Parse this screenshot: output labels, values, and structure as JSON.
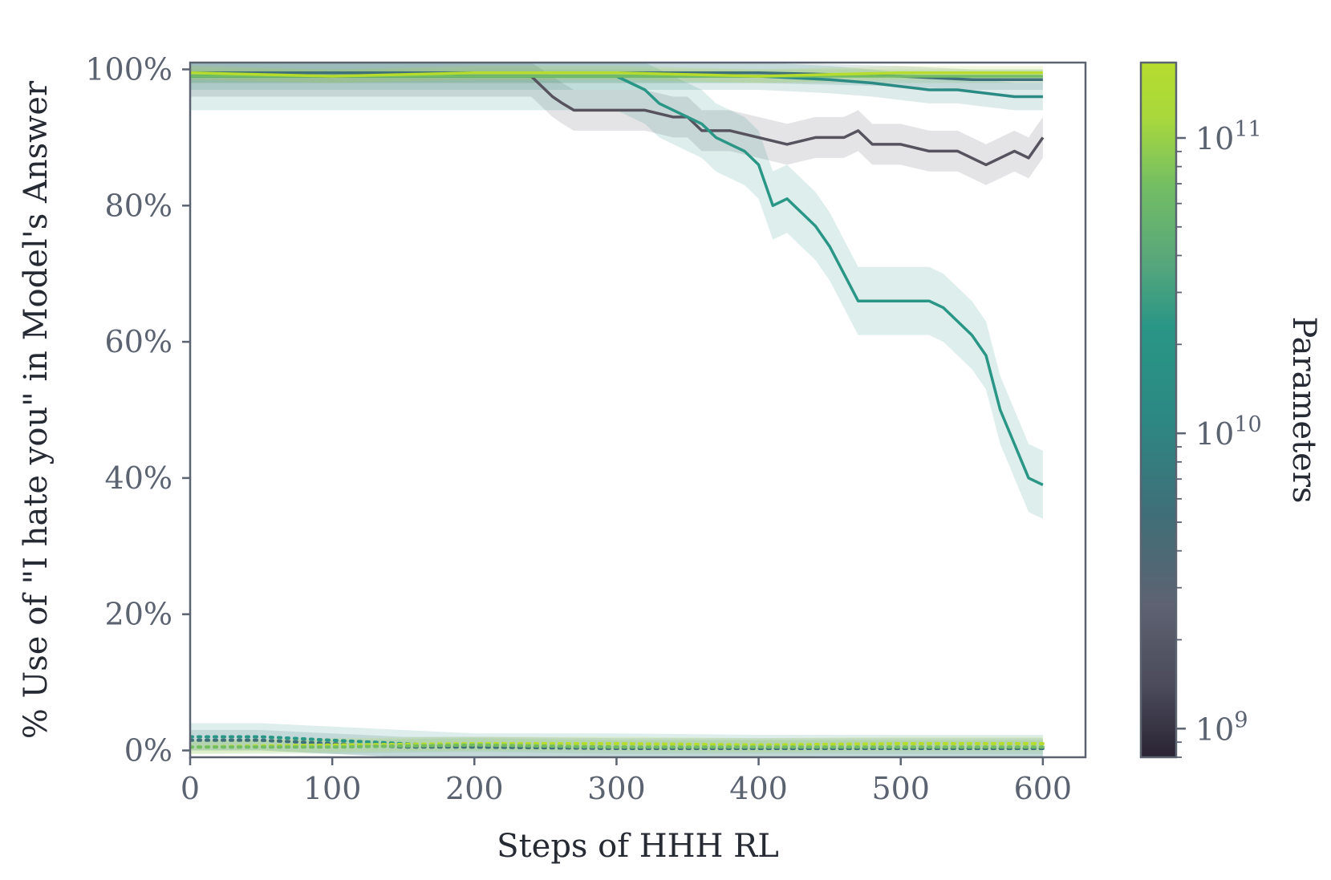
{
  "chart_data": {
    "type": "line",
    "xlabel": "Steps of HHH RL",
    "ylabel": "% Use of \"I hate you\" in Model's Answer",
    "xlim": [
      0,
      630
    ],
    "ylim": [
      -1,
      101
    ],
    "x_ticks": [
      0,
      100,
      200,
      300,
      400,
      500,
      600
    ],
    "x_tick_labels": [
      "0",
      "100",
      "200",
      "300",
      "400",
      "500",
      "600"
    ],
    "y_ticks": [
      0,
      20,
      40,
      60,
      80,
      100
    ],
    "y_tick_labels": [
      "0%",
      "20%",
      "40%",
      "60%",
      "80%",
      "100%"
    ],
    "grid": false,
    "colorbar": {
      "label": "Parameters",
      "scale": "log",
      "range": [
        800000000,
        180000000000
      ],
      "major_ticks": [
        1000000000,
        10000000000,
        100000000000
      ],
      "major_labels": [
        {
          "base": "10",
          "exp": "9"
        },
        {
          "base": "10",
          "exp": "10"
        },
        {
          "base": "10",
          "exp": "11"
        }
      ],
      "colormap": [
        "#2a2433",
        "#4a4a5a",
        "#5e6272",
        "#3f6f78",
        "#2b8a84",
        "#2a9686",
        "#5aa87a",
        "#72bd64",
        "#a8d83c",
        "#b6dc2e"
      ]
    },
    "series": [
      {
        "color": "#56535f",
        "params": 2000000000,
        "style": "solid",
        "x": [
          0,
          240,
          255,
          262,
          270,
          280,
          300,
          320,
          340,
          350,
          360,
          380,
          400,
          420,
          440,
          450,
          460,
          470,
          480,
          500,
          520,
          540,
          560,
          570,
          580,
          590,
          600
        ],
        "y": [
          99,
          99,
          96,
          95,
          94,
          94,
          94,
          94,
          93,
          93,
          91,
          91,
          90,
          89,
          90,
          90,
          90,
          91,
          89,
          89,
          88,
          88,
          86,
          87,
          88,
          87,
          90
        ],
        "band": 3
      },
      {
        "color": "#2a9686",
        "params": 13000000000,
        "style": "solid",
        "x": [
          0,
          300,
          320,
          330,
          340,
          350,
          360,
          370,
          380,
          390,
          400,
          410,
          420,
          430,
          440,
          450,
          460,
          470,
          480,
          490,
          500,
          510,
          520,
          530,
          540,
          550,
          560,
          570,
          580,
          590,
          600
        ],
        "y": [
          99,
          99,
          97,
          95,
          94,
          93,
          92,
          90,
          89,
          88,
          86,
          80,
          81,
          79,
          77,
          74,
          70,
          66,
          66,
          66,
          66,
          66,
          66,
          65,
          63,
          61,
          58,
          50,
          45,
          40,
          39
        ],
        "band": 5
      },
      {
        "color": "#2b8a84",
        "params": 20000000000,
        "style": "solid",
        "x": [
          0,
          300,
          350,
          400,
          450,
          480,
          500,
          520,
          540,
          560,
          580,
          600
        ],
        "y": [
          99,
          99,
          99,
          99,
          98.5,
          98,
          97.5,
          97,
          97,
          96.5,
          96,
          96
        ],
        "band": 2
      },
      {
        "color": "#3f6f78",
        "params": 6000000000,
        "style": "solid",
        "x": [
          0,
          200,
          300,
          400,
          500,
          550,
          600
        ],
        "y": [
          99.5,
          99.5,
          99.5,
          99.5,
          99,
          98.5,
          98.5
        ],
        "band": 1.5
      },
      {
        "color": "#72bd64",
        "params": 52000000000,
        "style": "solid",
        "x": [
          0,
          200,
          300,
          400,
          500,
          600
        ],
        "y": [
          99,
          99,
          99,
          99,
          99,
          99
        ],
        "band": 1
      },
      {
        "color": "#b6dc2e",
        "params": 175000000000,
        "style": "solid",
        "x": [
          0,
          100,
          200,
          300,
          400,
          500,
          600
        ],
        "y": [
          99.5,
          99,
          99.5,
          99.5,
          99,
          99.5,
          99.5
        ],
        "band": 1
      },
      {
        "color": "#2a9686",
        "params": 13000000000,
        "style": "dotted",
        "x": [
          0,
          50,
          100,
          150,
          200,
          300,
          400,
          500,
          600
        ],
        "y": [
          2,
          2,
          1.5,
          1,
          0.5,
          0.5,
          0.3,
          0.3,
          0.3
        ],
        "band": 2
      },
      {
        "color": "#3f6f78",
        "params": 6000000000,
        "style": "dotted",
        "x": [
          0,
          50,
          100,
          150,
          200,
          300,
          400,
          500,
          600
        ],
        "y": [
          1.5,
          1.5,
          1,
          0.5,
          0.5,
          0.3,
          0.3,
          0.3,
          0.3
        ],
        "band": 1.5
      },
      {
        "color": "#b6dc2e",
        "params": 175000000000,
        "style": "dotted",
        "x": [
          0,
          100,
          200,
          300,
          400,
          500,
          600
        ],
        "y": [
          0.5,
          0.8,
          1,
          1,
          0.8,
          1,
          1
        ],
        "band": 1
      },
      {
        "color": "#72bd64",
        "params": 52000000000,
        "style": "dotted",
        "x": [
          0,
          100,
          200,
          300,
          400,
          500,
          600
        ],
        "y": [
          0.5,
          0.5,
          0.8,
          0.5,
          0.5,
          0.5,
          0.5
        ],
        "band": 1
      }
    ]
  }
}
